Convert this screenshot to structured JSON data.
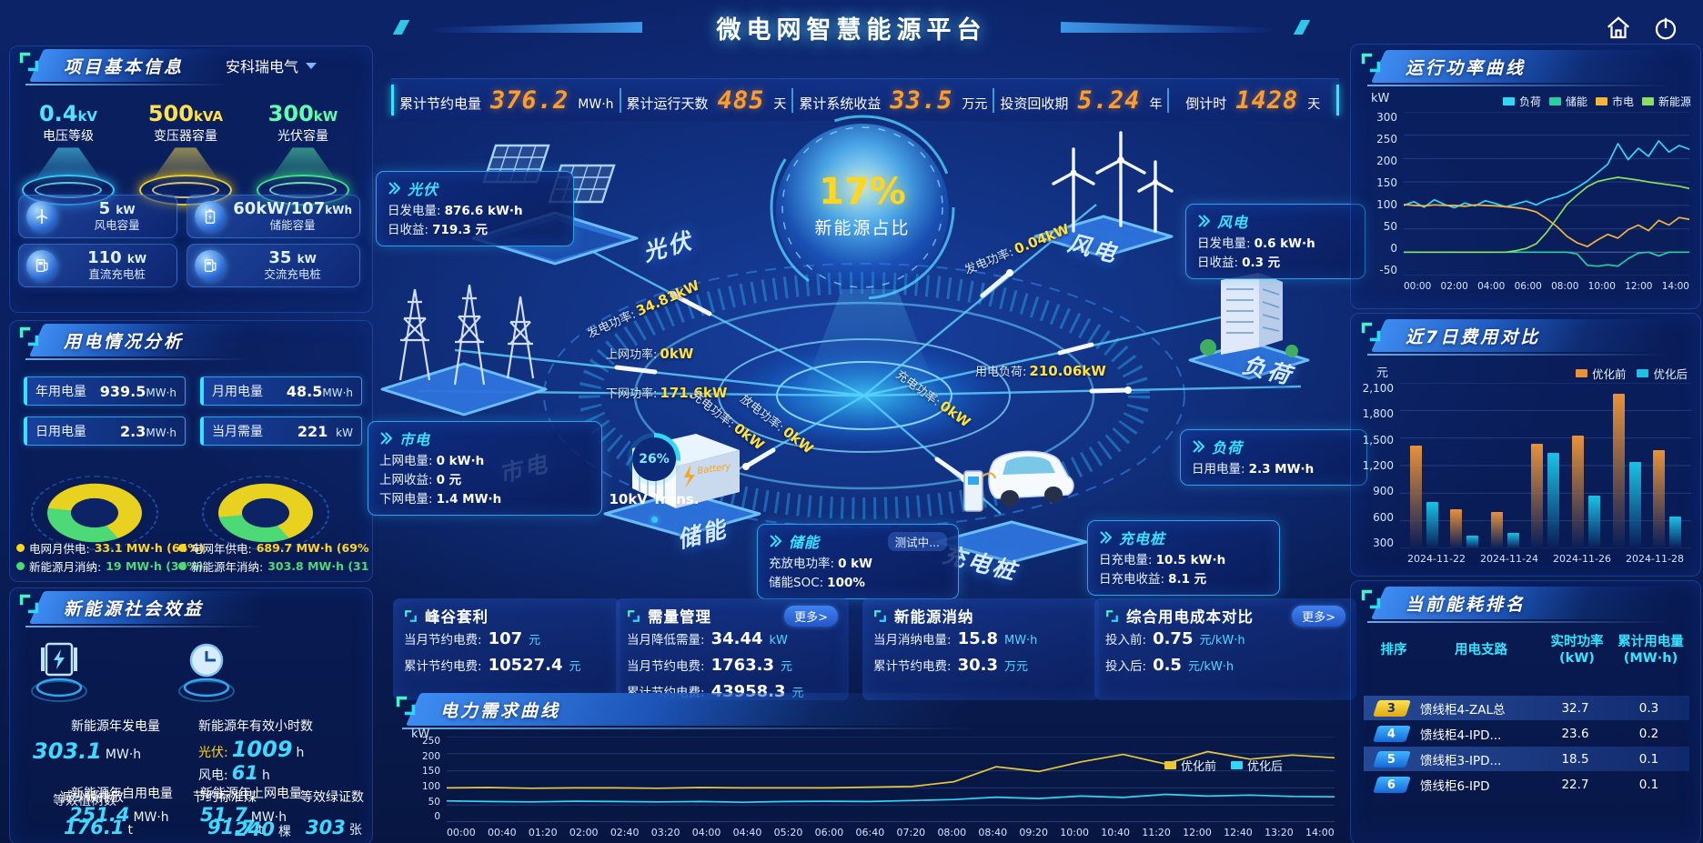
{
  "header": {
    "title": "微电网智慧能源平台"
  },
  "icons": {
    "top_right": [
      "home-icon",
      "power-icon"
    ]
  },
  "kpi_bar": {
    "items": [
      {
        "label": "累计节约电量",
        "value": "376.2",
        "unit": "MW·h"
      },
      {
        "label": "累计运行天数",
        "value": "485",
        "unit": "天"
      },
      {
        "label": "累计系统收益",
        "value": "33.5",
        "unit": "万元"
      },
      {
        "label": "投资回收期",
        "value": "5.24",
        "unit": "年"
      },
      {
        "label": "倒计时",
        "value": "1428",
        "unit": "天"
      }
    ]
  },
  "project_info": {
    "title": "项目基本信息",
    "company": "安科瑞电气",
    "spotlights": [
      {
        "value": "0.4",
        "unit": "kV",
        "label": "电压等级"
      },
      {
        "value": "500",
        "unit": "kVA",
        "label": "变压器容量"
      },
      {
        "value": "300",
        "unit": "kW",
        "label": "光伏容量"
      }
    ],
    "cards": [
      {
        "icon": "wind-turbine-icon",
        "value": "5",
        "unit": "kW",
        "label": "风电容量"
      },
      {
        "icon": "battery-icon",
        "value": "60kW/107",
        "unit": "kWh",
        "label": "储能容量"
      },
      {
        "icon": "dc-charger-icon",
        "value": "110",
        "unit": "kW",
        "label": "直流充电桩"
      },
      {
        "icon": "ac-charger-icon",
        "value": "35",
        "unit": "kW",
        "label": "交流充电桩"
      }
    ]
  },
  "usage_analysis": {
    "title": "用电情况分析",
    "stats": [
      {
        "label": "年用电量",
        "value": "939.5",
        "unit": "MW·h"
      },
      {
        "label": "月用电量",
        "value": "48.5",
        "unit": "MW·h"
      },
      {
        "label": "日用电量",
        "value": "2.3",
        "unit": "MW·h"
      },
      {
        "label": "当月需量",
        "value": "221",
        "unit": "kW"
      }
    ],
    "legend": [
      {
        "label": "电网月供电:",
        "value": "33.1 MW·h (64%)",
        "color": "#ffd61f"
      },
      {
        "label": "电网年供电:",
        "value": "689.7 MW·h (69%)",
        "color": "#ffd61f"
      },
      {
        "label": "新能源月消纳:",
        "value": "19 MW·h (36%)",
        "color": "#4ed977"
      },
      {
        "label": "新能源年消纳:",
        "value": "303.8 MW·h (31%)",
        "color": "#4ed977"
      }
    ]
  },
  "social_benefit": {
    "title": "新能源社会效益",
    "gen": {
      "label": "新能源年发电量",
      "value": "303.1",
      "unit": "MW·h"
    },
    "hours": {
      "label": "新能源年有效小时数",
      "pv_label": "光伏:",
      "pv_value": "1009",
      "pv_unit": "h",
      "wind_label": "风电:",
      "wind_value": "61",
      "wind_unit": "h"
    },
    "self_use": {
      "label": "新能源年自用电量",
      "value": "251.4",
      "unit": "MW·h"
    },
    "co2": {
      "label": "减少碳排放",
      "value": "176.1",
      "unit": "t"
    },
    "coal": {
      "label": "节约标准煤",
      "value": "91.7",
      "unit": "t"
    },
    "to_grid": {
      "label": "新能源年上网电量",
      "value": "51.7",
      "unit": "MW·h"
    },
    "trees": {
      "label": "等效植树数",
      "value": "240",
      "unit": "棵"
    },
    "certs": {
      "label": "等效绿证数",
      "value": "303",
      "unit": "张"
    }
  },
  "center": {
    "percent": "17%",
    "percent_label": "新能源占比",
    "gauge": {
      "percent": "26%",
      "value": 26,
      "label": "10kV Trans."
    },
    "nodes": [
      {
        "label": "光伏"
      },
      {
        "label": "市电"
      },
      {
        "label": "储能"
      },
      {
        "label": "风电"
      },
      {
        "label": "负荷"
      },
      {
        "label": "充电桩"
      }
    ],
    "flows": [
      {
        "label": "发电功率:",
        "value": "34.81kW"
      },
      {
        "label": "上网功率:",
        "value": "0kW"
      },
      {
        "label": "下网功率:",
        "value": "171.6kW"
      },
      {
        "label": "充电功率:",
        "value": "0kW"
      },
      {
        "label": "放电功率:",
        "value": "0kW"
      },
      {
        "label": "发电功率:",
        "value": "0.04kW"
      },
      {
        "label": "用电负荷:",
        "value": "210.06kW"
      },
      {
        "label": "充电功率:",
        "value": "0kW"
      }
    ],
    "boxes": {
      "pv": {
        "title": "光伏",
        "rows": [
          {
            "label": "日发电量:",
            "value": "876.6 kW·h"
          },
          {
            "label": "日收益:",
            "value": "719.3 元"
          }
        ]
      },
      "grid": {
        "title": "市电",
        "rows": [
          {
            "label": "上网电量:",
            "value": "0 kW·h"
          },
          {
            "label": "上网收益:",
            "value": "0 元"
          },
          {
            "label": "下网电量:",
            "value": "1.4 MW·h"
          }
        ]
      },
      "storage": {
        "title": "储能",
        "badge": "测试中...",
        "rows": [
          {
            "label": "充放电功率:",
            "value": "0 kW"
          },
          {
            "label": "储能SOC:",
            "value": "100%"
          }
        ]
      },
      "wind": {
        "title": "风电",
        "rows": [
          {
            "label": "日发电量:",
            "value": "0.6 kW·h"
          },
          {
            "label": "日收益:",
            "value": "0.3 元"
          }
        ]
      },
      "load": {
        "title": "负荷",
        "rows": [
          {
            "label": "日用电量:",
            "value": "2.3 MW·h"
          }
        ]
      },
      "charger": {
        "title": "充电桩",
        "rows": [
          {
            "label": "日充电量:",
            "value": "10.5 kW·h"
          },
          {
            "label": "日充电收益:",
            "value": "8.1 元"
          }
        ]
      }
    }
  },
  "benefit_cards": [
    {
      "title": "峰谷套利",
      "rows": [
        {
          "label": "当月节约电费:",
          "value": "107",
          "unit": "元"
        },
        {
          "label": "累计节约电费:",
          "value": "10527.4",
          "unit": "元"
        }
      ]
    },
    {
      "title": "需量管理",
      "more": "更多>",
      "rows": [
        {
          "label": "当月降低需量:",
          "value": "34.44",
          "unit": "kW"
        },
        {
          "label": "当月节约电费:",
          "value": "1763.3",
          "unit": "元"
        },
        {
          "label": "累计节约电费:",
          "value": "43958.3",
          "unit": "元"
        }
      ]
    },
    {
      "title": "新能源消纳",
      "rows": [
        {
          "label": "当月消纳电量:",
          "value": "15.8",
          "unit": "MW·h"
        },
        {
          "label": "累计节约电费:",
          "value": "30.3",
          "unit": "万元"
        }
      ]
    },
    {
      "title": "综合用电成本对比",
      "more": "更多>",
      "rows": [
        {
          "label": "投入前:",
          "value": "0.75",
          "unit": "元/kW·h"
        },
        {
          "label": "投入后:",
          "value": "0.5",
          "unit": "元/kW·h"
        }
      ]
    }
  ],
  "power_panel": {
    "title": "运行功率曲线"
  },
  "cost_panel": {
    "title": "近7日费用对比"
  },
  "demand_panel": {
    "title": "电力需求曲线"
  },
  "ranking": {
    "title": "当前能耗排名",
    "headers": [
      "排序",
      "用电支路",
      "实时功率",
      "累计用电量"
    ],
    "header_units": [
      "",
      "",
      "(kW)",
      "(MW·h)"
    ],
    "rows": [
      {
        "rank": "3",
        "badge": "yellow",
        "branch": "馈线柜4-ZAL总",
        "power": "32.7",
        "energy": "0.3"
      },
      {
        "rank": "4",
        "badge": "blue",
        "branch": "馈线柜4-IPD...",
        "power": "23.6",
        "energy": "0.2"
      },
      {
        "rank": "5",
        "badge": "blue",
        "branch": "馈线柜3-IPD...",
        "power": "18.5",
        "energy": "0.1"
      },
      {
        "rank": "6",
        "badge": "blue",
        "branch": "馈线柜6-IPD",
        "power": "22.7",
        "energy": "0.1"
      }
    ]
  },
  "chart_data": [
    {
      "id": "power_curve",
      "type": "line",
      "title": "运行功率曲线",
      "unit": "kW",
      "ylim": [
        -50,
        300
      ],
      "yticks": [
        300,
        250,
        200,
        150,
        100,
        50,
        0,
        -50
      ],
      "xticks": [
        "00:00",
        "02:00",
        "04:00",
        "06:00",
        "08:00",
        "10:00",
        "12:00",
        "14:00"
      ],
      "legend_position": "top",
      "series": [
        {
          "name": "负荷",
          "color": "#2fd8f5",
          "values": [
            100,
            108,
            96,
            112,
            102,
            95,
            105,
            99,
            110,
            104,
            97,
            103,
            109,
            101,
            112,
            118,
            126,
            138,
            152,
            170,
            188,
            232,
            198,
            222,
            205,
            238,
            214,
            228,
            220
          ]
        },
        {
          "name": "储能",
          "color": "#23d0a0",
          "values": [
            0,
            0,
            0,
            0,
            0,
            0,
            0,
            0,
            0,
            0,
            0,
            0,
            0,
            0,
            0,
            0,
            0,
            -4,
            -28,
            -30,
            -27,
            -30,
            -14,
            -2,
            0,
            -8,
            0,
            0,
            0
          ]
        },
        {
          "name": "市电",
          "color": "#f2b63c",
          "values": [
            102,
            100,
            99,
            101,
            100,
            100,
            98,
            101,
            100,
            99,
            97,
            95,
            92,
            86,
            72,
            55,
            34,
            20,
            12,
            26,
            38,
            30,
            48,
            58,
            46,
            68,
            58,
            74,
            70
          ]
        },
        {
          "name": "新能源",
          "color": "#8ae05a",
          "values": [
            0,
            0,
            0,
            0,
            0,
            0,
            0,
            0,
            0,
            0,
            0,
            3,
            8,
            18,
            42,
            72,
            102,
            122,
            140,
            151,
            156,
            160,
            157,
            154,
            150,
            147,
            144,
            141,
            136
          ]
        }
      ]
    },
    {
      "id": "cost_compare",
      "type": "bar",
      "title": "近7日费用对比",
      "unit": "元",
      "ylim": [
        300,
        2100
      ],
      "yticks": [
        2100,
        1800,
        1500,
        1200,
        900,
        600,
        300
      ],
      "ytick_labels": [
        "2,100",
        "1,800",
        "1,500",
        "1,200",
        "900",
        "600",
        "300"
      ],
      "categories": [
        "2024-11-22",
        "2024-11-23",
        "2024-11-24",
        "2024-11-25",
        "2024-11-26",
        "2024-11-27",
        "2024-11-28"
      ],
      "xtick_labels": [
        "2024-11-22",
        "2024-11-24",
        "2024-11-26",
        "2024-11-28"
      ],
      "series": [
        {
          "name": "优化前",
          "color": "#e8923a",
          "values": [
            1420,
            730,
            700,
            1440,
            1530,
            1980,
            1370
          ]
        },
        {
          "name": "优化后",
          "color": "#19c3e6",
          "values": [
            800,
            440,
            470,
            1340,
            870,
            1240,
            650
          ]
        }
      ]
    },
    {
      "id": "demand_curve",
      "type": "line",
      "title": "电力需求曲线",
      "unit": "kW",
      "ylim": [
        0,
        250
      ],
      "yticks": [
        250,
        200,
        150,
        100,
        50,
        0
      ],
      "xticks": [
        "00:00",
        "00:40",
        "01:20",
        "02:00",
        "02:40",
        "03:20",
        "04:00",
        "04:40",
        "05:20",
        "06:00",
        "06:40",
        "07:20",
        "08:00",
        "08:40",
        "09:20",
        "10:00",
        "10:40",
        "11:20",
        "12:00",
        "12:40",
        "13:20",
        "14:00"
      ],
      "legend_position": "top-right",
      "series": [
        {
          "name": "优化前",
          "color": "#e6c83a",
          "values": [
            100,
            101,
            99,
            100,
            100,
            99,
            101,
            100,
            100,
            100,
            102,
            104,
            118,
            162,
            148,
            176,
            198,
            170,
            206,
            184,
            196,
            188
          ]
        },
        {
          "name": "优化后",
          "color": "#2fd8f5",
          "values": [
            62,
            60,
            59,
            61,
            60,
            59,
            60,
            58,
            60,
            61,
            60,
            63,
            66,
            73,
            69,
            76,
            72,
            81,
            76,
            79,
            75,
            74
          ]
        }
      ]
    },
    {
      "id": "grid_vs_renewable_month",
      "type": "pie",
      "labels": [
        "电网月供电",
        "新能源月消纳"
      ],
      "values": [
        64,
        36
      ],
      "colors": [
        "#e8d21f",
        "#4ed977"
      ]
    },
    {
      "id": "grid_vs_renewable_year",
      "type": "pie",
      "labels": [
        "电网年供电",
        "新能源年消纳"
      ],
      "values": [
        69,
        31
      ],
      "colors": [
        "#e8d21f",
        "#4ed977"
      ]
    }
  ]
}
